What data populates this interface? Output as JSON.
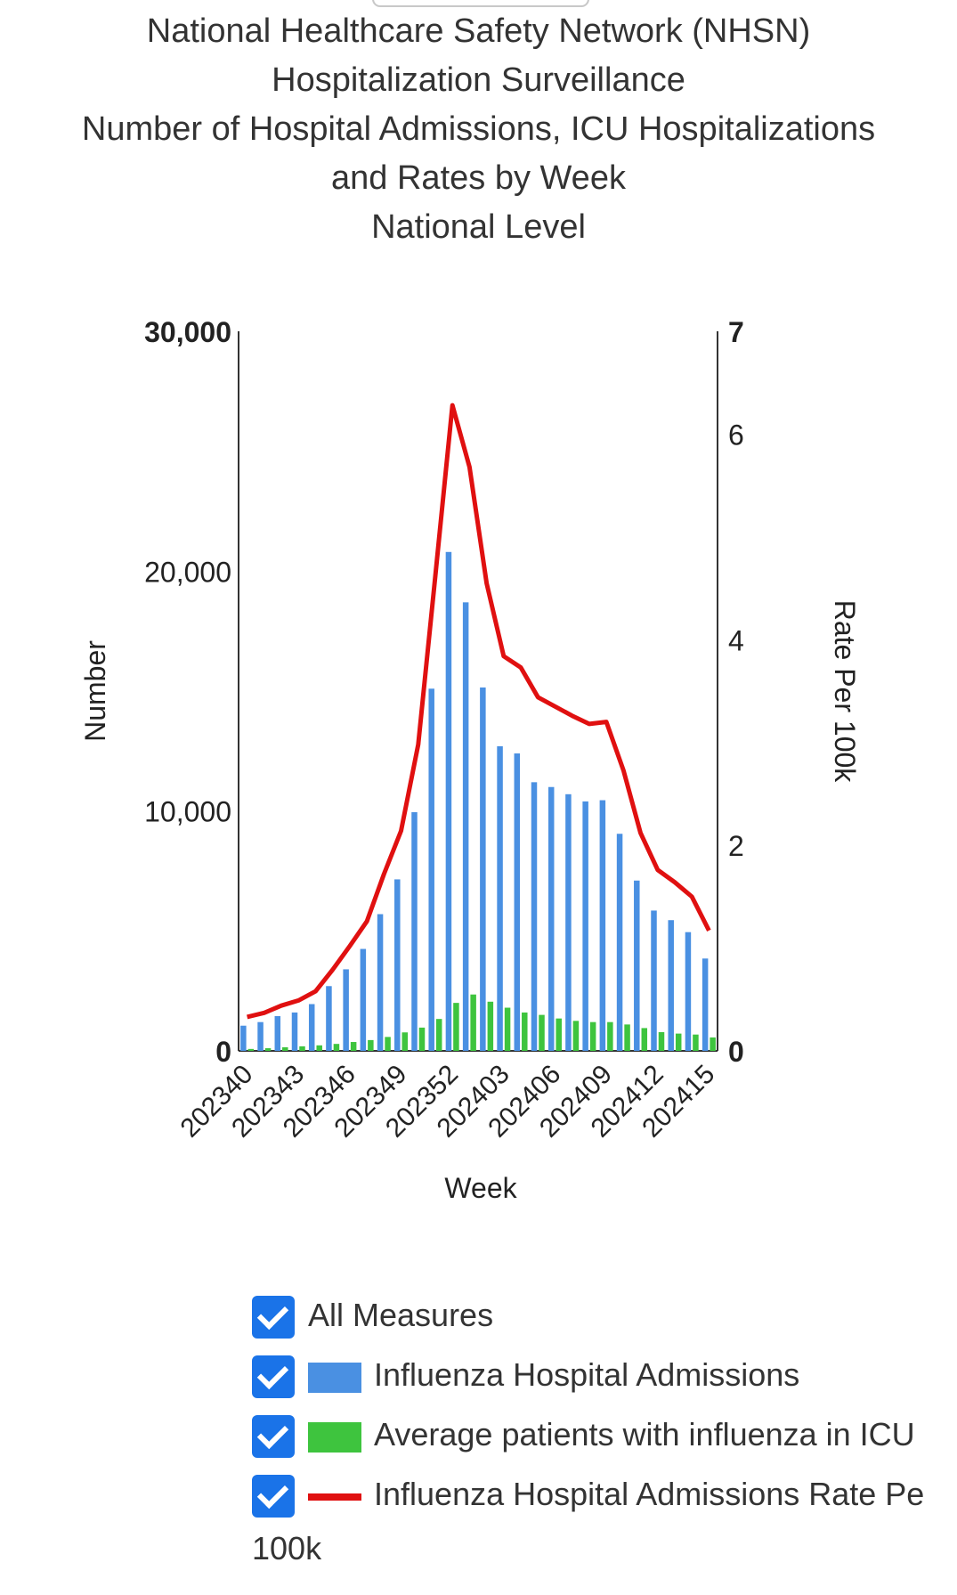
{
  "title_lines": [
    "National Healthcare Safety Network (NHSN)",
    "Hospitalization Surveillance",
    "Number of Hospital Admissions, ICU Hospitalizations",
    "and Rates by Week",
    "National Level"
  ],
  "colors": {
    "admissions": "#4a90e2",
    "icu": "#3ec43e",
    "rate": "#e01010",
    "checkbox": "#1a73e8"
  },
  "chart_data": {
    "type": "bar",
    "xlabel": "Week",
    "ylabel": "Number",
    "y2label": "Rate Per 100k",
    "ylim": [
      0,
      30000
    ],
    "y2lim": [
      0,
      7
    ],
    "y_ticks": [
      "30,000",
      "20,000",
      "10,000",
      "0"
    ],
    "y_tick_values": [
      30000,
      20000,
      10000,
      0
    ],
    "y2_ticks": [
      "7",
      "6",
      "4",
      "2",
      "0"
    ],
    "y2_tick_values": [
      7,
      6,
      4,
      2,
      0
    ],
    "grid": false,
    "legend_position": "bottom",
    "x_tick_labels": [
      "202340",
      "202343",
      "202346",
      "202349",
      "202352",
      "202403",
      "202406",
      "202409",
      "202412",
      "202415"
    ],
    "categories": [
      "202340",
      "202341",
      "202342",
      "202343",
      "202344",
      "202345",
      "202346",
      "202347",
      "202348",
      "202349",
      "202350",
      "202351",
      "202352",
      "202401",
      "202402",
      "202403",
      "202404",
      "202405",
      "202406",
      "202407",
      "202408",
      "202409",
      "202410",
      "202411",
      "202412",
      "202413",
      "202414",
      "202415"
    ],
    "series": [
      {
        "name": "Influenza Hospital Admissions",
        "kind": "bar",
        "axis": "left",
        "values": [
          1050,
          1200,
          1450,
          1600,
          1950,
          2700,
          3400,
          4250,
          5700,
          7150,
          9950,
          15100,
          20800,
          18700,
          15150,
          12700,
          12400,
          11200,
          11000,
          10700,
          10400,
          10450,
          9050,
          7100,
          5850,
          5450,
          4950,
          3850
        ]
      },
      {
        "name": "Average patients with influenza in ICU",
        "kind": "bar",
        "axis": "left",
        "values": [
          80,
          110,
          150,
          190,
          230,
          290,
          370,
          450,
          580,
          770,
          970,
          1330,
          2000,
          2350,
          2050,
          1800,
          1600,
          1500,
          1350,
          1250,
          1200,
          1200,
          1100,
          950,
          780,
          720,
          680,
          560
        ]
      },
      {
        "name": "Influenza Hospital Admissions Rate Per 100k",
        "kind": "line",
        "axis": "right",
        "values": [
          0.33,
          0.37,
          0.44,
          0.49,
          0.58,
          0.79,
          1.02,
          1.26,
          1.72,
          2.14,
          2.98,
          4.62,
          6.28,
          5.68,
          4.55,
          3.84,
          3.73,
          3.44,
          3.35,
          3.26,
          3.18,
          3.2,
          2.73,
          2.12,
          1.76,
          1.64,
          1.5,
          1.17
        ]
      }
    ]
  },
  "legend": {
    "all_measures": "All Measures",
    "items": [
      {
        "label": "Influenza Hospital Admissions"
      },
      {
        "label": "Average patients with influenza in ICU"
      },
      {
        "label": "Influenza Hospital Admissions Rate Pe"
      }
    ],
    "wrapped_tail": "100k"
  }
}
